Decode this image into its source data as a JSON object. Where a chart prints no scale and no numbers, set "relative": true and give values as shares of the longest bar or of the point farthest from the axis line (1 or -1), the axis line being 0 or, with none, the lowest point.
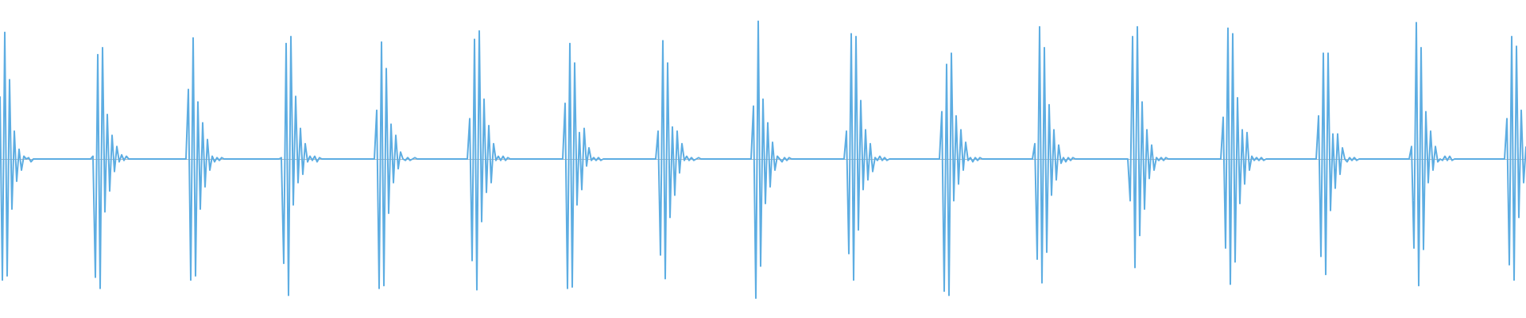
{
  "chart_data": {
    "type": "line",
    "relative": true,
    "color": "#5dade2",
    "categories": [
      null,
      null,
      null,
      null,
      null,
      null,
      null,
      null,
      null,
      null,
      null,
      null,
      null,
      null,
      null,
      null,
      null,
      null,
      null,
      null,
      null,
      null,
      null,
      null,
      null,
      null,
      null,
      null,
      null,
      null,
      null,
      null,
      null,
      null,
      null,
      null,
      null,
      null,
      null,
      null,
      null,
      null,
      null,
      null,
      null,
      null,
      null,
      null,
      null,
      null,
      null,
      null,
      null,
      null,
      null,
      null,
      null,
      null,
      null,
      null,
      null,
      null,
      null,
      null,
      null,
      null,
      null,
      null,
      null,
      null,
      null,
      null,
      null,
      null,
      null,
      null,
      null,
      null,
      null,
      null,
      null,
      null,
      null,
      null,
      null,
      null,
      null,
      null,
      null,
      null,
      null,
      null,
      null,
      null,
      null,
      null,
      null,
      null,
      null,
      null,
      null,
      null,
      null,
      null,
      null,
      null,
      null,
      null,
      null,
      null,
      null,
      null,
      null,
      null,
      null,
      null,
      null,
      null,
      null,
      null,
      null,
      null,
      null,
      null,
      null,
      null,
      null,
      null,
      null,
      null,
      null,
      null,
      null,
      null,
      null,
      null,
      null,
      null,
      null,
      null,
      null,
      null,
      null,
      null,
      null,
      null,
      null,
      null,
      null,
      null,
      null,
      null,
      null,
      null,
      null,
      null,
      null,
      null,
      null,
      null,
      null,
      null,
      null,
      null,
      null,
      null,
      null,
      null,
      null,
      null,
      null,
      null,
      null,
      null,
      null,
      null,
      null,
      null,
      null,
      null,
      null,
      null,
      null,
      null,
      null,
      null,
      null,
      null,
      null,
      null,
      null,
      null,
      null,
      null,
      null,
      null,
      null,
      null,
      null,
      null,
      null,
      null,
      null,
      null,
      null,
      null,
      null,
      null,
      null,
      null,
      null,
      null,
      null,
      null,
      null,
      null,
      null,
      null,
      null,
      null,
      null,
      null,
      null,
      null,
      null,
      null,
      null,
      null,
      null,
      null,
      null,
      null,
      null,
      null,
      null,
      null,
      null,
      null,
      null,
      null,
      null,
      null,
      null,
      null,
      null,
      null,
      null,
      null,
      null,
      null,
      null,
      null,
      null,
      null,
      null,
      null,
      null,
      null,
      null,
      null,
      null,
      null,
      null,
      null,
      null,
      null,
      null,
      null,
      null,
      null,
      null,
      null,
      null,
      null,
      null,
      null,
      null,
      null,
      null,
      null,
      null,
      null,
      null,
      null,
      null,
      null,
      null,
      null,
      null,
      null,
      null,
      null,
      null,
      null,
      null,
      null,
      null,
      null,
      null,
      null,
      null,
      null,
      null,
      null,
      null,
      null,
      null,
      null,
      null,
      null,
      null,
      null,
      null,
      null,
      null,
      null,
      null,
      null,
      null,
      null,
      null,
      null,
      null,
      null,
      null,
      null,
      null,
      null,
      null,
      null,
      null,
      null,
      null,
      null,
      null,
      null,
      null,
      null,
      null,
      null,
      null,
      null,
      null,
      null,
      null,
      null,
      null,
      null,
      null,
      null,
      null,
      null,
      null,
      null,
      null,
      null,
      null,
      null,
      null,
      null,
      null,
      null,
      null,
      null,
      null,
      null,
      null,
      null,
      null,
      null,
      null,
      null,
      null,
      null,
      null,
      null,
      null,
      null,
      null,
      null,
      null,
      null,
      null,
      null,
      null,
      null,
      null,
      null,
      null,
      null,
      null,
      null,
      null,
      null,
      null,
      null,
      null,
      null,
      null,
      null,
      null,
      null,
      null,
      null,
      null,
      null,
      null,
      null,
      null,
      null,
      null,
      null,
      null,
      null,
      null,
      null,
      null,
      null,
      null,
      null,
      null,
      null,
      null,
      null,
      null,
      null,
      null,
      null,
      null,
      null,
      null,
      null,
      null,
      null,
      null,
      null,
      null,
      null,
      null,
      null,
      null,
      null,
      null,
      null,
      null,
      null,
      null,
      null,
      null,
      null,
      null,
      null,
      null,
      null,
      null,
      null,
      null,
      null,
      null,
      null,
      null,
      null,
      null,
      null,
      null,
      null,
      null,
      null,
      null,
      null,
      null,
      null,
      null,
      null,
      null,
      null,
      null,
      null,
      null,
      null,
      null,
      null,
      null,
      null,
      null,
      null,
      null,
      null,
      null,
      null,
      null,
      null,
      null,
      null,
      null,
      null,
      null,
      null,
      null,
      null,
      null,
      null,
      null,
      null,
      null,
      null,
      null,
      null,
      null,
      null,
      null,
      null,
      null,
      null,
      null,
      null,
      null,
      null,
      null,
      null,
      null,
      null,
      null,
      null,
      null,
      null,
      null,
      null,
      null,
      null,
      null,
      null,
      null,
      null,
      null,
      null,
      null,
      null,
      null,
      null,
      null,
      null,
      null,
      null,
      null,
      null,
      null,
      null,
      null,
      null,
      null,
      null,
      null,
      null,
      null,
      null,
      null,
      null,
      null,
      null,
      null,
      null,
      null,
      null,
      null,
      null,
      null,
      null,
      null,
      null,
      null,
      null,
      null,
      null,
      null,
      null,
      null,
      null,
      null,
      null,
      null,
      null,
      null,
      null,
      null,
      null,
      null,
      null,
      null,
      null,
      null,
      null,
      null,
      null,
      null,
      null,
      null,
      null,
      null,
      null,
      null,
      null,
      null,
      null,
      null,
      null,
      null,
      null,
      null,
      null,
      null,
      null,
      null,
      null,
      null,
      null,
      null,
      null,
      null,
      null,
      null,
      null,
      null,
      null,
      null,
      null,
      null,
      null,
      null,
      null,
      null,
      null,
      null,
      null,
      null,
      null,
      null,
      null,
      null,
      null,
      null
    ],
    "values": [
      0.45,
      -0.87,
      0.91,
      -0.84,
      0.57,
      -0.36,
      0.2,
      -0.16,
      0.07,
      -0.08,
      0.02,
      0,
      0.01,
      -0.02,
      0,
      0,
      0,
      0,
      0,
      0,
      0,
      0,
      0,
      0,
      0,
      0,
      0,
      0,
      0,
      0,
      0,
      0,
      0,
      0,
      0,
      0,
      0,
      0,
      0,
      0.02,
      -0.85,
      0.75,
      -0.93,
      0.8,
      -0.38,
      0.32,
      -0.23,
      0.17,
      -0.09,
      0.09,
      -0.02,
      0.03,
      -0.01,
      0.02,
      0,
      0,
      0,
      0,
      0,
      0,
      0,
      0,
      0,
      0,
      0,
      0,
      0,
      0,
      0,
      0,
      0,
      0,
      0,
      0,
      0,
      0,
      0,
      0,
      0,
      0.5,
      -0.87,
      0.87,
      -0.84,
      0.41,
      -0.36,
      0.26,
      -0.2,
      0.14,
      -0.08,
      0.02,
      -0.02,
      0.01,
      -0.01,
      0.01,
      0,
      0,
      0,
      0,
      0,
      0,
      0,
      0,
      0,
      0,
      0,
      0,
      0,
      0,
      0,
      0,
      0,
      0,
      0,
      0,
      0,
      0,
      0,
      0,
      0.01,
      -0.75,
      0.83,
      -0.98,
      0.88,
      -0.33,
      0.45,
      -0.17,
      0.22,
      -0.11,
      0.11,
      -0.02,
      0.02,
      -0.01,
      0.02,
      -0.02,
      0.01,
      0,
      0,
      0,
      0,
      0,
      0,
      0,
      0,
      0,
      0,
      0,
      0,
      0,
      0,
      0,
      0,
      0,
      0,
      0,
      0,
      0,
      0,
      0,
      0.35,
      -0.93,
      0.84,
      -0.91,
      0.65,
      -0.39,
      0.25,
      -0.17,
      0.17,
      -0.07,
      0.05,
      0,
      -0.01,
      0.01,
      -0.01,
      0,
      0.01,
      0,
      0,
      0,
      0,
      0,
      0,
      0,
      0,
      0,
      0,
      0,
      0,
      0,
      0,
      0,
      0,
      0,
      0,
      0,
      0,
      0,
      0,
      0.29,
      -0.73,
      0.86,
      -0.94,
      0.92,
      -0.45,
      0.43,
      -0.24,
      0.24,
      -0.17,
      0.11,
      -0.01,
      0.02,
      -0.01,
      0.02,
      -0.01,
      0.01,
      0,
      0,
      0,
      0,
      0,
      0,
      0,
      0,
      0,
      0,
      0,
      0,
      0,
      0,
      0,
      0,
      0,
      0,
      0,
      0,
      0,
      0,
      0,
      0.4,
      -0.93,
      0.83,
      -0.92,
      0.69,
      -0.33,
      0.19,
      -0.22,
      0.22,
      -0.05,
      0.08,
      -0.01,
      0.01,
      -0.01,
      0.01,
      -0.01,
      0,
      0,
      0,
      0,
      0,
      0,
      0,
      0,
      0,
      0,
      0,
      0,
      0,
      0,
      0,
      0,
      0,
      0,
      0,
      0,
      0,
      0,
      0,
      0.2,
      -0.69,
      0.85,
      -0.86,
      0.69,
      -0.42,
      0.23,
      -0.26,
      0.2,
      -0.1,
      0.11,
      -0.01,
      0.02,
      -0.01,
      0.01,
      -0.01,
      0,
      0.01,
      0,
      0,
      0,
      0,
      0,
      0,
      0,
      0,
      0,
      0,
      0,
      0,
      0,
      0,
      0,
      0,
      0,
      0,
      0,
      0,
      0,
      0,
      0.38,
      -1.0,
      0.99,
      -0.77,
      0.43,
      -0.32,
      0.26,
      -0.2,
      0.12,
      -0.08,
      0.02,
      0,
      -0.02,
      0.01,
      -0.01,
      0.01,
      0,
      0,
      0,
      0,
      0,
      0,
      0,
      0,
      0,
      0,
      0,
      0,
      0,
      0,
      0,
      0,
      0,
      0,
      0,
      0,
      0,
      0,
      0,
      0.2,
      -0.68,
      0.9,
      -0.87,
      0.88,
      -0.51,
      0.42,
      -0.22,
      0.21,
      -0.15,
      0.11,
      -0.09,
      0.01,
      -0.01,
      0.02,
      -0.01,
      0.01,
      -0.01,
      0,
      0,
      0,
      0,
      0,
      0,
      0,
      0,
      0,
      0,
      0,
      0,
      0,
      0,
      0,
      0,
      0,
      0,
      0,
      0,
      0,
      0,
      0.34,
      -0.95,
      0.68,
      -0.98,
      0.76,
      -0.3,
      0.31,
      -0.18,
      0.21,
      -0.08,
      0.12,
      -0.01,
      0.01,
      -0.02,
      0.01,
      -0.01,
      0.01,
      0,
      0,
      0,
      0,
      0,
      0,
      0,
      0,
      0,
      0,
      0,
      0,
      0,
      0,
      0,
      0,
      0,
      0,
      0,
      0,
      0,
      0,
      0.11,
      -0.72,
      0.95,
      -0.89,
      0.8,
      -0.67,
      0.39,
      -0.26,
      0.21,
      -0.15,
      0.1,
      -0.03,
      0.01,
      -0.02,
      0.01,
      -0.01,
      0.01,
      0,
      0,
      0,
      0,
      0,
      0,
      0,
      0,
      0,
      0,
      0,
      0,
      0,
      0,
      0,
      0,
      0,
      0,
      0,
      0,
      0,
      0,
      0,
      -0.3,
      0.88,
      -0.78,
      0.95,
      -0.55,
      0.41,
      -0.36,
      0.21,
      -0.14,
      0.1,
      -0.08,
      0.01,
      -0.01,
      0.01,
      -0.01,
      0.01,
      0,
      0,
      0,
      0,
      0,
      0,
      0,
      0,
      0,
      0,
      0,
      0,
      0,
      0,
      0,
      0,
      0,
      0,
      0,
      0,
      0,
      0,
      0,
      0.3,
      -0.64,
      0.94,
      -0.9,
      0.9,
      -0.74,
      0.44,
      -0.32,
      0.21,
      -0.18,
      0.19,
      -0.08,
      0.02,
      -0.01,
      0.01,
      -0.01,
      0.01,
      -0.01,
      0,
      0,
      0,
      0,
      0,
      0,
      0,
      0,
      0,
      0,
      0,
      0,
      0,
      0,
      0,
      0,
      0,
      0,
      0,
      0,
      0,
      0,
      0.31,
      -0.7,
      0.76,
      -0.83,
      0.76,
      -0.37,
      0.18,
      -0.21,
      0.18,
      -0.11,
      0.08,
      0,
      -0.02,
      0.01,
      -0.01,
      0.01,
      -0.01,
      0,
      0,
      0,
      0,
      0,
      0,
      0,
      0,
      0,
      0,
      0,
      0,
      0,
      0,
      0,
      0,
      0,
      0,
      0,
      0,
      0,
      0,
      0.09,
      -0.64,
      0.98,
      -0.91,
      0.8,
      -0.65,
      0.34,
      -0.17,
      0.2,
      -0.08,
      0.09,
      -0.02,
      0,
      -0.01,
      0.02,
      -0.01,
      0.02,
      -0.01,
      0,
      0,
      0,
      0,
      0,
      0,
      0,
      0,
      0,
      0,
      0,
      0,
      0,
      0,
      0,
      0,
      0,
      0,
      0,
      0,
      0,
      0,
      0.29,
      -0.76,
      0.88,
      -0.87,
      0.81,
      -0.42,
      0.35,
      -0.17,
      0.09
    ]
  }
}
